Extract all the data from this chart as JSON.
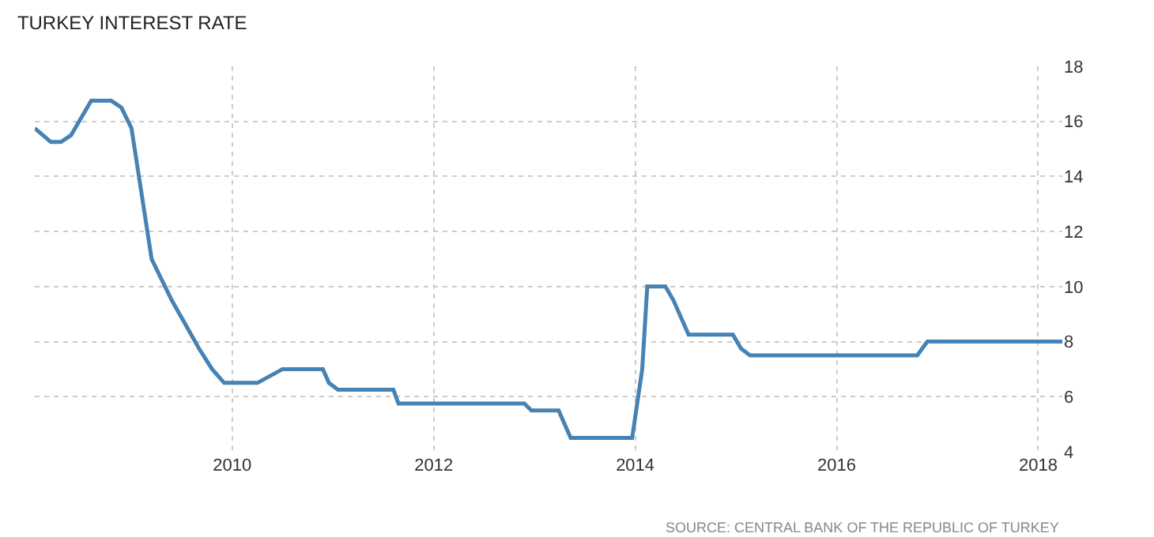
{
  "chart_data": {
    "type": "line",
    "title": "TURKEY INTEREST RATE",
    "x": [
      2008.04,
      2008.2,
      2008.3,
      2008.4,
      2008.6,
      2008.8,
      2008.9,
      2009.0,
      2009.2,
      2009.4,
      2009.67,
      2009.8,
      2009.92,
      2010.25,
      2010.5,
      2010.9,
      2010.96,
      2011.05,
      2011.6,
      2011.65,
      2012.9,
      2012.97,
      2013.24,
      2013.3,
      2013.36,
      2013.97,
      2014.07,
      2014.12,
      2014.3,
      2014.38,
      2014.53,
      2014.97,
      2015.05,
      2015.14,
      2016.8,
      2016.9,
      2018.24
    ],
    "series": [
      {
        "color": "#4682b4",
        "values": [
          15.75,
          15.25,
          15.25,
          15.5,
          16.75,
          16.75,
          16.5,
          15.75,
          11.0,
          9.5,
          7.75,
          7.0,
          6.5,
          6.5,
          7.0,
          7.0,
          6.5,
          6.25,
          6.25,
          5.75,
          5.75,
          5.5,
          5.5,
          5.0,
          4.5,
          4.5,
          7.0,
          10.0,
          10.0,
          9.5,
          8.25,
          8.25,
          7.75,
          7.5,
          7.5,
          8.0,
          8.0
        ]
      }
    ],
    "xlim": [
      2008.04,
      2018.24
    ],
    "xticks": [
      2010,
      2012,
      2014,
      2016,
      2018
    ],
    "ylim": [
      4,
      18
    ],
    "yticks": [
      4,
      6,
      8,
      10,
      12,
      14,
      16,
      18
    ],
    "grid": true,
    "marker": "none",
    "line_style": "solid",
    "annotations": [
      "SOURCE: CENTRAL BANK OF THE REPUBLIC OF TURKEY"
    ]
  }
}
